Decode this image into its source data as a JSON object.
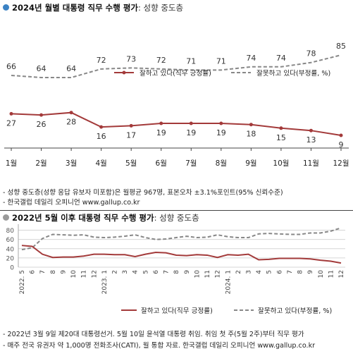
{
  "top": {
    "title_main": "2024년 월별 대통령 직무 수행 평가",
    "title_sub": ": 성향 중도층",
    "dot_color": "#3b82c4",
    "notes": [
      "- 성향 중도층(성향 응답 유보자 미포함)은 월평균 967명, 표본오차 ±3.1%포인트(95% 신뢰수준)",
      "- 한국갤럽 데일리 오피니언 www.gallup.co.kr"
    ]
  },
  "bottom": {
    "title_main": "2022년 5월 이후 대통령 직무 수행 평가",
    "title_sub": ": 성향 중도층",
    "dot_color": "#9a9a9a",
    "notes": [
      "- 2022년 3월 9일 제20대 대통령선거. 5월 10일 윤석열 대통령 취임. 취임 첫 주(5월 2주)부터 직무 평가",
      "- 매주 전국 유권자 약 1,000명 전화조사(CATI), 월 통합 자료. 한국갤럽 데일리 오피니언 www.gallup.co.kr"
    ]
  },
  "chart_data": [
    {
      "type": "line",
      "categories": [
        "1월",
        "2월",
        "3월",
        "4월",
        "5월",
        "6월",
        "7월",
        "8월",
        "9월",
        "10월",
        "11월",
        "12월"
      ],
      "series": [
        {
          "name": "잘하고 있다(직무 긍정률)",
          "color": "#a33a3a",
          "style": "solid",
          "values": [
            27,
            26,
            28,
            16,
            17,
            19,
            19,
            19,
            18,
            15,
            13,
            9
          ]
        },
        {
          "name": "잘못하고 있다(부정률, %)",
          "color": "#888888",
          "style": "dashed",
          "values": [
            66,
            64,
            64,
            72,
            73,
            72,
            71,
            71,
            74,
            74,
            78,
            85
          ]
        }
      ],
      "legend": "middle-right",
      "grid": false
    },
    {
      "type": "line",
      "x_ticks": [
        "2022. 5",
        "6",
        "7",
        "8",
        "9",
        "10",
        "11",
        "12",
        "2023. 1",
        "2",
        "3",
        "4",
        "5",
        "6",
        "7",
        "8",
        "9",
        "10",
        "11",
        "12",
        "2024. 1",
        "2",
        "3",
        "4",
        "5",
        "6",
        "7",
        "8",
        "9",
        "10",
        "11",
        "12"
      ],
      "y_ticks": [
        0,
        20,
        40,
        60,
        80
      ],
      "ylim": [
        0,
        90
      ],
      "series": [
        {
          "name": "잘하고 있다(직무 긍정률)",
          "color": "#a33a3a",
          "style": "solid",
          "values": [
            47,
            45,
            28,
            21,
            22,
            22,
            24,
            28,
            28,
            27,
            27,
            23,
            28,
            32,
            31,
            26,
            25,
            27,
            26,
            21,
            27,
            26,
            28,
            16,
            17,
            19,
            19,
            19,
            18,
            15,
            13,
            9
          ]
        },
        {
          "name": "잘못하고 있다(부정률, %)",
          "color": "#888888",
          "style": "dashed",
          "values": [
            38,
            42,
            62,
            71,
            70,
            69,
            70,
            65,
            64,
            65,
            67,
            70,
            64,
            60,
            61,
            64,
            67,
            64,
            65,
            70,
            66,
            64,
            64,
            72,
            73,
            72,
            71,
            71,
            74,
            74,
            78,
            85
          ]
        }
      ],
      "legend": "bottom",
      "grid": true
    }
  ]
}
